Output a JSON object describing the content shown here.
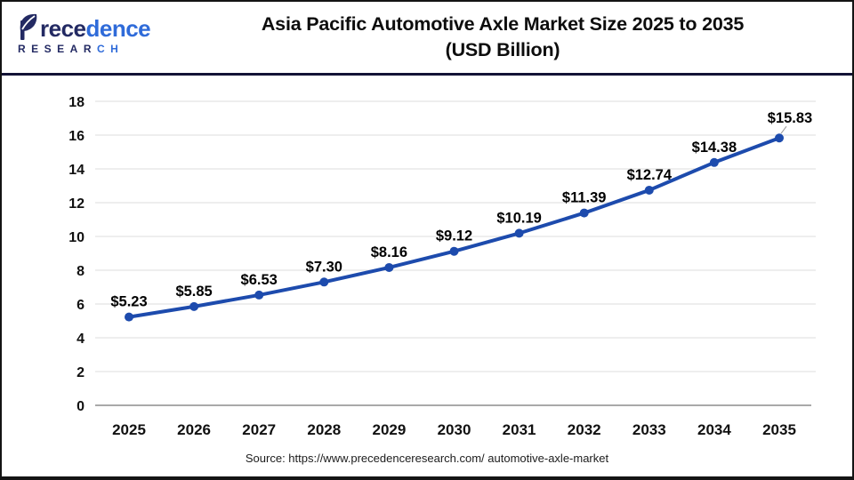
{
  "header": {
    "logo": {
      "name_dark": "rece",
      "name_light": "dence",
      "sub_dark": "RESEAR",
      "sub_light": "CH"
    },
    "title_line1": "Asia Pacific Automotive Axle Market Size 2025 to 2035",
    "title_line2": "(USD Billion)"
  },
  "chart_data": {
    "type": "line",
    "title": "Asia Pacific Automotive Axle Market Size 2025 to 2035 (USD Billion)",
    "categories": [
      "2025",
      "2026",
      "2027",
      "2028",
      "2029",
      "2030",
      "2031",
      "2032",
      "2033",
      "2034",
      "2035"
    ],
    "values": [
      5.23,
      5.85,
      6.53,
      7.3,
      8.16,
      9.12,
      10.19,
      11.39,
      12.74,
      14.38,
      15.83
    ],
    "point_labels": [
      "$5.23",
      "$5.85",
      "$6.53",
      "$7.30",
      "$8.16",
      "$9.12",
      "$10.19",
      "$11.39",
      "$12.74",
      "$14.38",
      "$15.83"
    ],
    "xlabel": "",
    "ylabel": "",
    "ylim": [
      0,
      18
    ],
    "ytick_step": 2,
    "grid": true,
    "legend": "none",
    "series_color": "#1d4bad",
    "grid_color": "#e3e3e3",
    "axis_color": "#a9a9a9",
    "tick_color": "#111111",
    "label_color": "#000000",
    "leader_color": "#999999"
  },
  "footer": {
    "source": "Source: https://www.precedenceresearch.com/ automotive-axle-market"
  }
}
